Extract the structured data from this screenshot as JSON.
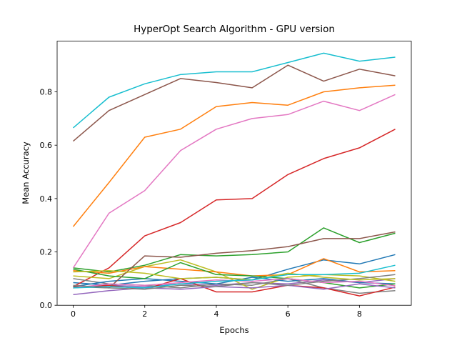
{
  "figure": {
    "background_color": "#ffffff",
    "frame_color": "#000000",
    "grid": false,
    "legend": false
  },
  "chart_data": {
    "type": "line",
    "title": "HyperOpt Search Algorithm - GPU version",
    "xlabel": "Epochs",
    "ylabel": "Mean Accuracy",
    "x": [
      0,
      1,
      2,
      3,
      4,
      5,
      6,
      7,
      8,
      9
    ],
    "x_ticks": [
      "0",
      "2",
      "4",
      "6",
      "8"
    ],
    "x_tick_values": [
      0,
      2,
      4,
      6,
      8
    ],
    "y_ticks": [
      "0.0",
      "0.2",
      "0.4",
      "0.6",
      "0.8"
    ],
    "y_tick_values": [
      0.0,
      0.2,
      0.4,
      0.6,
      0.8
    ],
    "xlim": [
      -0.45,
      9.45
    ],
    "ylim": [
      0,
      0.99
    ],
    "series": [
      {
        "name": "line-01-blue",
        "color": "#1f77b4",
        "values": [
          0.085,
          0.075,
          0.09,
          0.1,
          0.105,
          0.095,
          0.135,
          0.17,
          0.155,
          0.19
        ]
      },
      {
        "name": "line-02-orange",
        "color": "#ff7f0e",
        "values": [
          0.295,
          0.46,
          0.63,
          0.66,
          0.745,
          0.76,
          0.75,
          0.8,
          0.815,
          0.825
        ]
      },
      {
        "name": "line-03-green",
        "color": "#2ca02c",
        "values": [
          0.14,
          0.125,
          0.15,
          0.19,
          0.185,
          0.19,
          0.2,
          0.29,
          0.235,
          0.27
        ]
      },
      {
        "name": "line-04-red",
        "color": "#d62728",
        "values": [
          0.07,
          0.14,
          0.26,
          0.31,
          0.395,
          0.4,
          0.49,
          0.55,
          0.59,
          0.66
        ]
      },
      {
        "name": "line-05-purple",
        "color": "#9467bd",
        "values": [
          0.065,
          0.075,
          0.07,
          0.08,
          0.075,
          0.085,
          0.08,
          0.095,
          0.085,
          0.1
        ]
      },
      {
        "name": "line-06-brown",
        "color": "#8c564b",
        "values": [
          0.615,
          0.73,
          0.79,
          0.85,
          0.835,
          0.815,
          0.9,
          0.84,
          0.885,
          0.86
        ]
      },
      {
        "name": "line-07-pink",
        "color": "#e377c2",
        "values": [
          0.14,
          0.345,
          0.43,
          0.58,
          0.66,
          0.7,
          0.715,
          0.765,
          0.73,
          0.79
        ]
      },
      {
        "name": "line-08-gray",
        "color": "#7f7f7f",
        "values": [
          0.1,
          0.08,
          0.075,
          0.065,
          0.08,
          0.075,
          0.1,
          0.065,
          0.045,
          0.055
        ]
      },
      {
        "name": "line-09-olive",
        "color": "#bcbd22",
        "values": [
          0.11,
          0.1,
          0.145,
          0.17,
          0.125,
          0.06,
          0.105,
          0.115,
          0.11,
          0.09
        ]
      },
      {
        "name": "line-10-cyan",
        "color": "#17becf",
        "values": [
          0.665,
          0.78,
          0.83,
          0.865,
          0.875,
          0.875,
          0.91,
          0.945,
          0.915,
          0.93
        ]
      },
      {
        "name": "line-11-blue",
        "color": "#1f77b4",
        "values": [
          0.07,
          0.09,
          0.1,
          0.09,
          0.08,
          0.105,
          0.09,
          0.1,
          0.085,
          0.08
        ]
      },
      {
        "name": "line-12-orange",
        "color": "#ff7f0e",
        "values": [
          0.13,
          0.12,
          0.145,
          0.135,
          0.125,
          0.11,
          0.115,
          0.175,
          0.125,
          0.13
        ]
      },
      {
        "name": "line-13-green",
        "color": "#2ca02c",
        "values": [
          0.135,
          0.11,
          0.1,
          0.16,
          0.115,
          0.11,
          0.1,
          0.085,
          0.065,
          0.08
        ]
      },
      {
        "name": "line-14-red",
        "color": "#d62728",
        "values": [
          0.065,
          0.075,
          0.06,
          0.1,
          0.05,
          0.05,
          0.075,
          0.065,
          0.035,
          0.068
        ]
      },
      {
        "name": "line-15-purple",
        "color": "#9467bd",
        "values": [
          0.04,
          0.055,
          0.065,
          0.06,
          0.07,
          0.065,
          0.075,
          0.06,
          0.08,
          0.065
        ]
      },
      {
        "name": "line-16-brown",
        "color": "#8c564b",
        "values": [
          0.07,
          0.065,
          0.185,
          0.18,
          0.195,
          0.205,
          0.22,
          0.25,
          0.25,
          0.275
        ]
      },
      {
        "name": "line-17-pink",
        "color": "#e377c2",
        "values": [
          0.065,
          0.08,
          0.075,
          0.085,
          0.095,
          0.09,
          0.1,
          0.085,
          0.09,
          0.073
        ]
      },
      {
        "name": "line-18-gray",
        "color": "#7f7f7f",
        "values": [
          0.075,
          0.065,
          0.06,
          0.075,
          0.07,
          0.085,
          0.075,
          0.09,
          0.1,
          0.115
        ]
      },
      {
        "name": "line-19-olive",
        "color": "#bcbd22",
        "values": [
          0.125,
          0.13,
          0.12,
          0.1,
          0.105,
          0.095,
          0.12,
          0.105,
          0.095,
          0.1
        ]
      },
      {
        "name": "line-20-cyan",
        "color": "#17becf",
        "values": [
          0.065,
          0.07,
          0.065,
          0.08,
          0.09,
          0.095,
          0.115,
          0.115,
          0.12,
          0.15
        ]
      }
    ]
  }
}
